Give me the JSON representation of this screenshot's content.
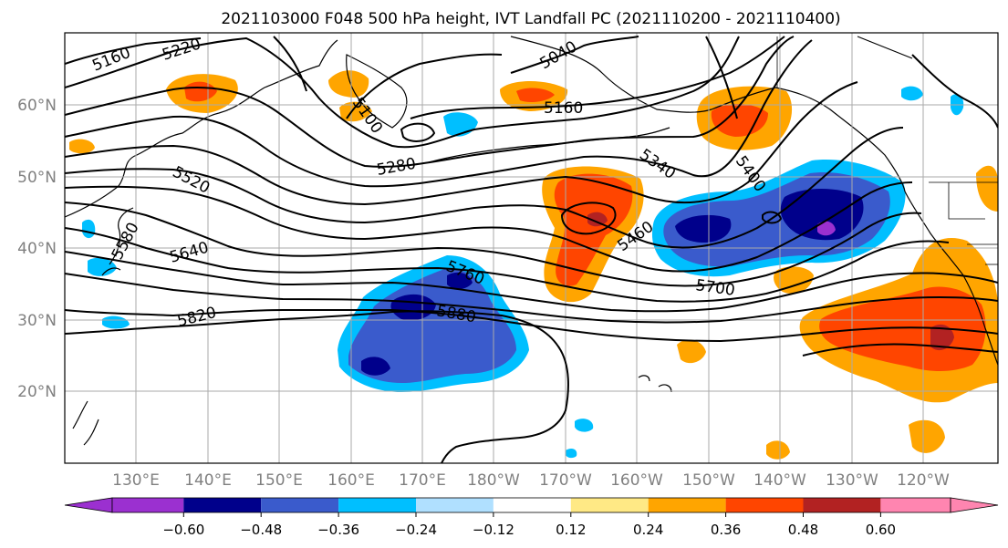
{
  "title": "2021103000 F048 500 hPa height, IVT Landfall PC (2021110200 - 2021110400)",
  "map": {
    "lon_labels": [
      "130°E",
      "140°E",
      "150°E",
      "160°E",
      "170°E",
      "180°W",
      "170°W",
      "160°W",
      "150°W",
      "140°W",
      "130°W",
      "120°W"
    ],
    "lat_labels": [
      "20°N",
      "30°N",
      "40°N",
      "50°N",
      "60°N"
    ],
    "contour_labels": [
      "5160",
      "5220",
      "5040",
      "5100",
      "5160",
      "5280",
      "5340",
      "5400",
      "5520",
      "5580",
      "5640",
      "5460",
      "5760",
      "5700",
      "5820",
      "5880"
    ]
  },
  "colorbar": {
    "tick_labels": [
      "−0.60",
      "−0.48",
      "−0.36",
      "−0.24",
      "−0.12",
      "0.12",
      "0.24",
      "0.36",
      "0.48",
      "0.60"
    ],
    "colors": [
      "#9b30d0",
      "#00008b",
      "#3a5bcc",
      "#00bfff",
      "#b0e0ff",
      "#ffffff",
      "#ffe985",
      "#ffa500",
      "#ff4500",
      "#b22222",
      "#ff85b0"
    ]
  }
}
